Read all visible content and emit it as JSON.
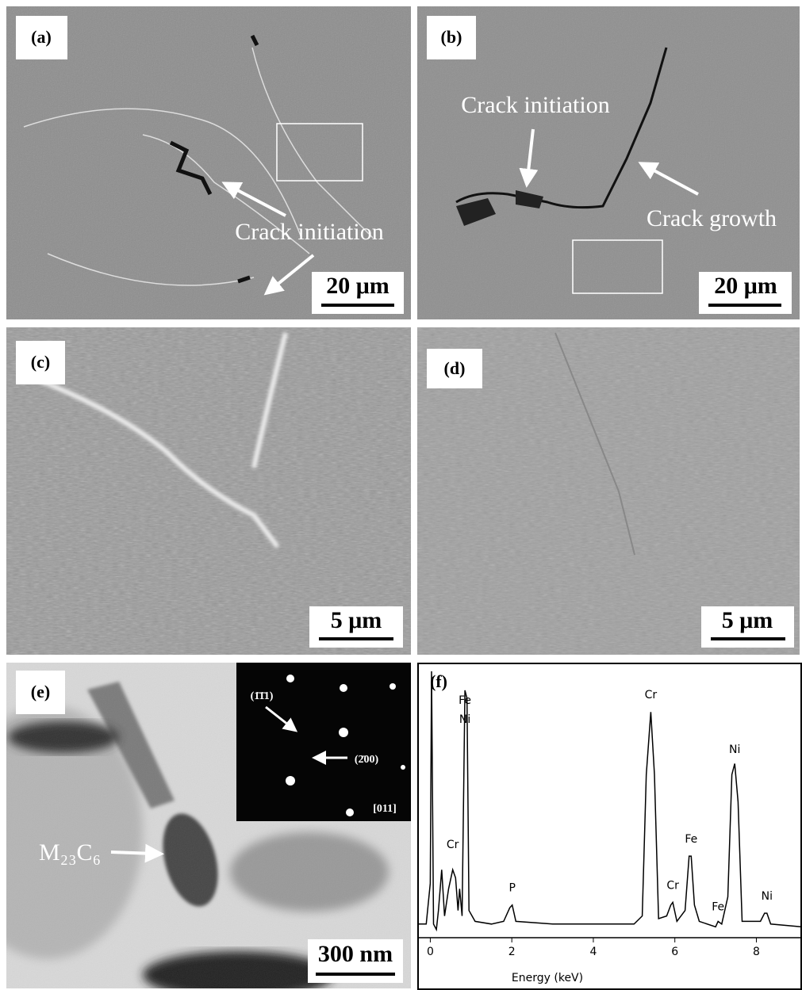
{
  "panels": [
    {
      "label": "(a)",
      "annotations": [
        "Crack initiation"
      ],
      "scale_bar": "20 μm"
    },
    {
      "label": "(b)",
      "annotations": [
        "Crack initiation",
        "Crack growth"
      ],
      "scale_bar": "20 μm"
    },
    {
      "label": "(c)",
      "scale_bar": "5 μm"
    },
    {
      "label": "(d)",
      "scale_bar": "5 μm"
    },
    {
      "label": "(e)",
      "annotations": [
        "M₂₃C₆"
      ],
      "scale_bar": "300 nm",
      "inset": {
        "labels": [
          "(1̄1̄1)",
          "(2̄00)",
          "[011]"
        ]
      }
    }
  ],
  "chart_data": {
    "type": "line",
    "label": "(f)",
    "x_label": "Energy (keV)",
    "color": "#000000",
    "x": [
      -0.3,
      -0.1,
      0,
      0.03,
      0.08,
      0.15,
      0.2,
      0.28,
      0.35,
      0.45,
      0.55,
      0.62,
      0.68,
      0.72,
      0.78,
      0.85,
      0.9,
      0.95,
      1.1,
      1.5,
      1.8,
      1.95,
      2.01,
      2.1,
      3,
      4,
      5,
      5.2,
      5.3,
      5.41,
      5.5,
      5.6,
      5.8,
      5.9,
      5.95,
      6.05,
      6.25,
      6.35,
      6.4,
      6.48,
      6.6,
      7.0,
      7.06,
      7.15,
      7.3,
      7.4,
      7.47,
      7.55,
      7.65,
      8.1,
      8.2,
      8.26,
      8.35,
      9.1
    ],
    "values": [
      5,
      5,
      20,
      98,
      5,
      3,
      10,
      25,
      8,
      18,
      25,
      22,
      10,
      18,
      8,
      91,
      88,
      10,
      6,
      5,
      6,
      11,
      12,
      6,
      5,
      5,
      5,
      8,
      60,
      83,
      60,
      7,
      8,
      12,
      13,
      6,
      10,
      30,
      30,
      12,
      6,
      4,
      6,
      5,
      15,
      60,
      64,
      50,
      6,
      6,
      9,
      9,
      5,
      4
    ],
    "xlim": [
      -0.3,
      9.1
    ],
    "ylim": [
      0,
      100
    ],
    "xticks": [
      0,
      2,
      4,
      6,
      8
    ],
    "annotations": [
      {
        "text": "Fe",
        "x": 0.85,
        "y": 86
      },
      {
        "text": "Ni",
        "x": 0.85,
        "y": 79
      },
      {
        "text": "Cr",
        "x": 0.55,
        "y": 33
      },
      {
        "text": "P",
        "x": 2.01,
        "y": 17
      },
      {
        "text": "Cr",
        "x": 5.41,
        "y": 88
      },
      {
        "text": "Cr",
        "x": 5.95,
        "y": 18
      },
      {
        "text": "Fe",
        "x": 6.4,
        "y": 35
      },
      {
        "text": "Fe",
        "x": 7.06,
        "y": 10
      },
      {
        "text": "Ni",
        "x": 7.47,
        "y": 68
      },
      {
        "text": "Ni",
        "x": 8.26,
        "y": 14
      }
    ]
  }
}
